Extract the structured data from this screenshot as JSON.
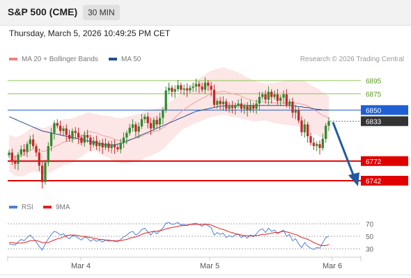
{
  "header": {
    "symbol": "S&P 500 (CME)",
    "timeframe": "30 MIN",
    "timestamp": "Thursday, March 5, 2026 10:49:25 PM CET"
  },
  "legend": {
    "bollinger": {
      "label": "MA 20 + Bollinger Bands",
      "color": "#f08080"
    },
    "ma50": {
      "label": "MA 50",
      "color": "#1f4e8c"
    },
    "credit": "Research © 2026 Trading Central"
  },
  "rsi_legend": {
    "rsi": {
      "label": "RSI",
      "color": "#4f7fd6"
    },
    "ma9": {
      "label": "9MA",
      "color": "#e02020"
    }
  },
  "chart_data": [
    {
      "type": "candlestick",
      "title": "",
      "x_ticks": [
        "Mar 4",
        "Mar 5",
        "Mar 6"
      ],
      "y_range": [
        6710,
        6920
      ],
      "levels": [
        {
          "value": 6895,
          "label": "6895",
          "kind": "target",
          "color": "#8dc04f"
        },
        {
          "value": 6875,
          "label": "6875",
          "kind": "target",
          "color": "#8dc04f"
        },
        {
          "value": 6850,
          "label": "6850",
          "kind": "pivot",
          "color": "#1f5fd4"
        },
        {
          "value": 6833,
          "label": "6833",
          "kind": "last-price",
          "color": "#333333"
        },
        {
          "value": 6772,
          "label": "6772",
          "kind": "support",
          "color": "#e00000"
        },
        {
          "value": 6742,
          "label": "6742",
          "kind": "support",
          "color": "#e00000"
        }
      ],
      "closes": [
        6785,
        6772,
        6768,
        6782,
        6790,
        6786,
        6798,
        6805,
        6795,
        6785,
        6765,
        6740,
        6770,
        6795,
        6815,
        6830,
        6826,
        6818,
        6822,
        6812,
        6806,
        6818,
        6815,
        6808,
        6800,
        6812,
        6808,
        6797,
        6803,
        6795,
        6800,
        6793,
        6799,
        6792,
        6797,
        6793,
        6790,
        6800,
        6808,
        6815,
        6823,
        6828,
        6817,
        6825,
        6836,
        6840,
        6830,
        6822,
        6835,
        6828,
        6838,
        6850,
        6880,
        6884,
        6878,
        6882,
        6888,
        6881,
        6883,
        6880,
        6884,
        6886,
        6890,
        6886,
        6881,
        6892,
        6887,
        6881,
        6858,
        6864,
        6859,
        6863,
        6852,
        6856,
        6853,
        6857,
        6860,
        6852,
        6856,
        6850,
        6857,
        6852,
        6860,
        6870,
        6874,
        6866,
        6878,
        6870,
        6874,
        6864,
        6869,
        6874,
        6858,
        6863,
        6846,
        6850,
        6834,
        6816,
        6828,
        6810,
        6800,
        6795,
        6798,
        6792,
        6806,
        6826,
        6833
      ],
      "ma20": [
        6784,
        6782,
        6779,
        6779,
        6780,
        6782,
        6785,
        6788,
        6790,
        6790,
        6789,
        6787,
        6787,
        6789,
        6791,
        6794,
        6796,
        6798,
        6801,
        6802,
        6802,
        6804,
        6806,
        6809,
        6810,
        6814,
        6816,
        6817,
        6816,
        6815,
        6813,
        6811,
        6810,
        6809,
        6807,
        6805,
        6804,
        6803,
        6803,
        6804,
        6805,
        6806,
        6807,
        6808,
        6810,
        6813,
        6814,
        6815,
        6817,
        6818,
        6820,
        6823,
        6826,
        6831,
        6834,
        6838,
        6843,
        6847,
        6851,
        6854,
        6857,
        6860,
        6863,
        6865,
        6868,
        6870,
        6873,
        6875,
        6876,
        6877,
        6878,
        6879,
        6878,
        6876,
        6875,
        6874,
        6873,
        6871,
        6869,
        6867,
        6866,
        6864,
        6863,
        6863,
        6863,
        6862,
        6862,
        6861,
        6861,
        6861,
        6861,
        6861,
        6861,
        6861,
        6861,
        6861,
        6860,
        6859,
        6858,
        6856,
        6853,
        6850,
        6848,
        6845,
        6842,
        6840,
        6838
      ],
      "ma50": [
        6840,
        6838,
        6836,
        6834,
        6832,
        6830,
        6828,
        6826,
        6824,
        6822,
        6820,
        6818,
        6817,
        6816,
        6815,
        6814,
        6813,
        6812,
        6811,
        6810,
        6809,
        6808,
        6807,
        6806,
        6805,
        6804,
        6803,
        6802,
        6801,
        6800,
        6799,
        6798,
        6797,
        6797,
        6797,
        6797,
        6798,
        6799,
        6800,
        6802,
        6804,
        6806,
        6808,
        6810,
        6812,
        6814,
        6816,
        6818,
        6820,
        6822,
        6824,
        6826,
        6828,
        6830,
        6832,
        6834,
        6836,
        6838,
        6840,
        6842,
        6844,
        6846,
        6848,
        6849,
        6850,
        6851,
        6852,
        6853,
        6854,
        6855,
        6856,
        6856,
        6857,
        6857,
        6857,
        6857,
        6857,
        6857,
        6857,
        6857,
        6857,
        6857,
        6857,
        6857,
        6857,
        6857,
        6857,
        6857,
        6857,
        6857,
        6857,
        6857,
        6857,
        6857,
        6856,
        6856,
        6855,
        6855,
        6854,
        6854,
        6853,
        6852,
        6851,
        6851,
        6850,
        6850,
        6850
      ]
    },
    {
      "type": "line",
      "title": "",
      "series": [
        {
          "name": "RSI",
          "color": "#4f7fd6",
          "values": [
            38,
            37,
            36,
            41,
            45,
            43,
            48,
            52,
            47,
            41,
            34,
            28,
            38,
            46,
            53,
            58,
            56,
            52,
            54,
            49,
            46,
            51,
            50,
            47,
            44,
            49,
            47,
            42,
            45,
            42,
            44,
            41,
            44,
            42,
            43,
            42,
            41,
            45,
            49,
            52,
            56,
            58,
            52,
            55,
            61,
            63,
            57,
            52,
            58,
            54,
            59,
            63,
            71,
            72,
            69,
            70,
            72,
            68,
            69,
            67,
            69,
            70,
            71,
            69,
            66,
            70,
            67,
            64,
            52,
            56,
            53,
            55,
            48,
            51,
            49,
            52,
            54,
            48,
            51,
            47,
            52,
            49,
            54,
            60,
            62,
            56,
            63,
            58,
            60,
            54,
            57,
            60,
            50,
            53,
            43,
            46,
            38,
            32,
            40,
            34,
            31,
            29,
            32,
            31,
            40,
            48,
            50
          ]
        },
        {
          "name": "9MA",
          "color": "#e02020",
          "values": [
            40,
            40,
            39,
            39,
            39,
            40,
            41,
            43,
            43,
            43,
            42,
            40,
            40,
            40,
            42,
            44,
            46,
            47,
            49,
            51,
            52,
            52,
            52,
            51,
            50,
            50,
            49,
            48,
            47,
            46,
            45,
            45,
            44,
            44,
            43,
            43,
            43,
            43,
            44,
            45,
            47,
            48,
            49,
            51,
            53,
            55,
            56,
            57,
            58,
            58,
            59,
            60,
            62,
            63,
            64,
            65,
            66,
            67,
            67,
            68,
            69,
            69,
            69,
            69,
            69,
            69,
            69,
            68,
            66,
            64,
            62,
            61,
            59,
            57,
            56,
            54,
            53,
            52,
            51,
            51,
            51,
            51,
            51,
            52,
            53,
            53,
            54,
            55,
            56,
            56,
            57,
            58,
            57,
            56,
            54,
            53,
            51,
            48,
            47,
            45,
            43,
            40,
            38,
            36,
            35,
            35,
            37
          ]
        }
      ],
      "y_ticks": [
        70,
        50,
        30
      ],
      "y_range": [
        20,
        80
      ]
    }
  ]
}
